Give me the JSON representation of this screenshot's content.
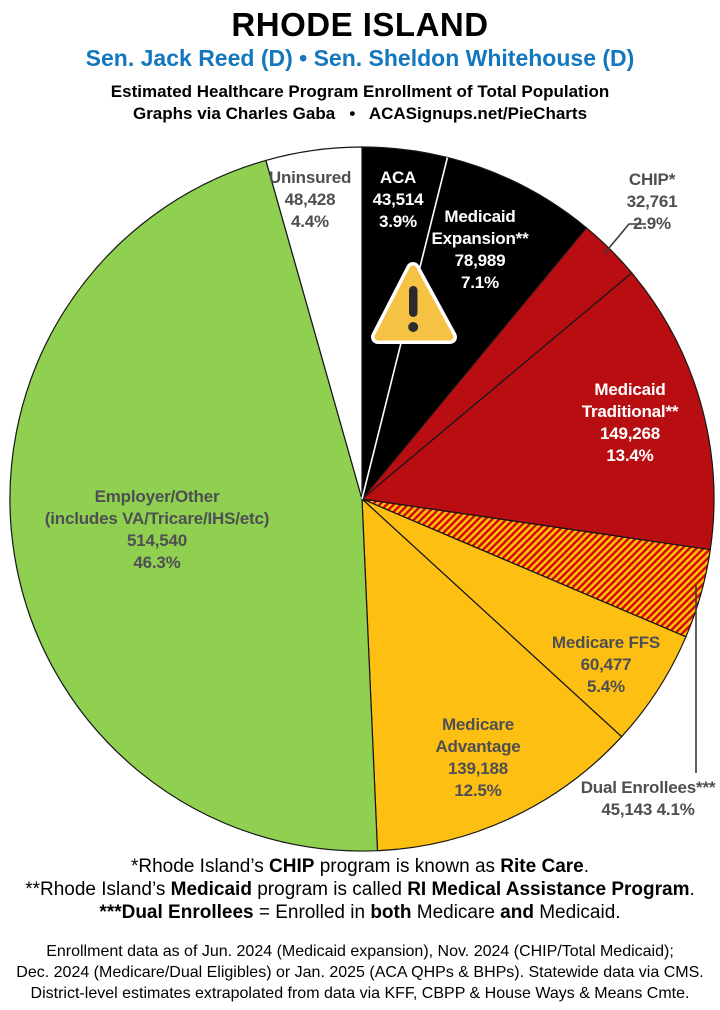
{
  "header": {
    "title": "RHODE ISLAND",
    "subtitle": "Sen. Jack Reed (D) • Sen. Sheldon Whitehouse (D)",
    "subtitle_color": "#1377bd",
    "line1": "Estimated Healthcare Program Enrollment of Total Population",
    "line2": "Graphs via Charles Gaba   •   ACASignups.net/PieCharts"
  },
  "chart_data": {
    "type": "pie",
    "title": "Estimated Healthcare Program Enrollment of Total Population",
    "region": "Rhode Island",
    "start_angle_deg_from_top": 0,
    "direction": "clockwise",
    "slices": [
      {
        "id": "aca",
        "name": "ACA",
        "value": 43514,
        "value_str": "43,514",
        "pct": 3.9,
        "color": "#000000",
        "label": "ACA\n43,514\n3.9%",
        "label_color": "#ffffff"
      },
      {
        "id": "medicaid-expansion",
        "name": "Medicaid Expansion**",
        "value": 78989,
        "value_str": "78,989",
        "pct": 7.1,
        "color": "#000000",
        "label": "Medicaid\nExpansion**\n78,989\n7.1%",
        "label_color": "#ffffff"
      },
      {
        "id": "chip",
        "name": "CHIP*",
        "value": 32761,
        "value_str": "32,761",
        "pct": 2.9,
        "color": "#b80e12",
        "label": "CHIP*\n32,761\n2.9%",
        "label_color": "#4e4f53"
      },
      {
        "id": "medicaid-traditional",
        "name": "Medicaid Traditional**",
        "value": 149268,
        "value_str": "149,268",
        "pct": 13.4,
        "color": "#b80e12",
        "label": "Medicaid\nTraditional**\n149,268\n13.4%",
        "label_color": "#ffffff"
      },
      {
        "id": "dual-enrollees",
        "name": "Dual Enrollees***",
        "value": 45143,
        "value_str": "45,143",
        "pct": 4.1,
        "color": "hatch",
        "hatch": true,
        "hatch_colors": [
          "#d40b0e",
          "#ffc303"
        ],
        "label": "Dual Enrollees***\n45,143 4.1%",
        "label_color": "#4e4f53"
      },
      {
        "id": "medicare-ffs",
        "name": "Medicare FFS",
        "value": 60477,
        "value_str": "60,477",
        "pct": 5.4,
        "color": "#fdbf11",
        "label": "Medicare FFS\n60,477\n5.4%",
        "label_color": "#4e4f53"
      },
      {
        "id": "medicare-advantage",
        "name": "Medicare Advantage",
        "value": 139188,
        "value_str": "139,188",
        "pct": 12.5,
        "color": "#fdbf11",
        "label": "Medicare\nAdvantage\n139,188\n12.5%",
        "label_color": "#4e4f53"
      },
      {
        "id": "employer-other",
        "name": "Employer/Other (includes VA/Tricare/IHS/etc)",
        "value": 514540,
        "value_str": "514,540",
        "pct": 46.3,
        "color": "#8fd051",
        "label": "Employer/Other\n(includes VA/Tricare/IHS/etc)\n514,540\n46.3%",
        "label_color": "#4e4f53"
      },
      {
        "id": "uninsured",
        "name": "Uninsured",
        "value": 48428,
        "value_str": "48,428",
        "pct": 4.4,
        "color": "#ffffff",
        "label": "Uninsured\n48,428\n4.4%",
        "label_color": "#4e4f53"
      }
    ],
    "annotations": {
      "warning_icon_on_slice": "medicaid-expansion"
    }
  },
  "footnotes": [
    [
      {
        "t": "*Rhode Island’s "
      },
      {
        "t": "CHIP",
        "b": true
      },
      {
        "t": " program is known as "
      },
      {
        "t": "Rite Care",
        "b": true
      },
      {
        "t": "."
      }
    ],
    [
      {
        "t": "**Rhode Island’s "
      },
      {
        "t": "Medicaid",
        "b": true
      },
      {
        "t": " program is called "
      },
      {
        "t": "RI Medical Assistance Program",
        "b": true
      },
      {
        "t": "."
      }
    ],
    [
      {
        "t": "***Dual Enrollees",
        "b": true
      },
      {
        "t": " = Enrolled in "
      },
      {
        "t": "both",
        "b": true
      },
      {
        "t": " Medicare "
      },
      {
        "t": "and",
        "b": true
      },
      {
        "t": " Medicaid."
      }
    ]
  ],
  "source_notes": [
    "Enrollment data as of Jun. 2024 (Medicaid expansion), Nov. 2024 (CHIP/Total Medicaid);",
    "Dec. 2024 (Medicare/Dual Eligibles) or Jan. 2025 (ACA QHPs & BHPs). Statewide data via CMS.",
    "District-level estimates extrapolated from data via KFF, CBPP & House Ways & Means Cmte."
  ]
}
